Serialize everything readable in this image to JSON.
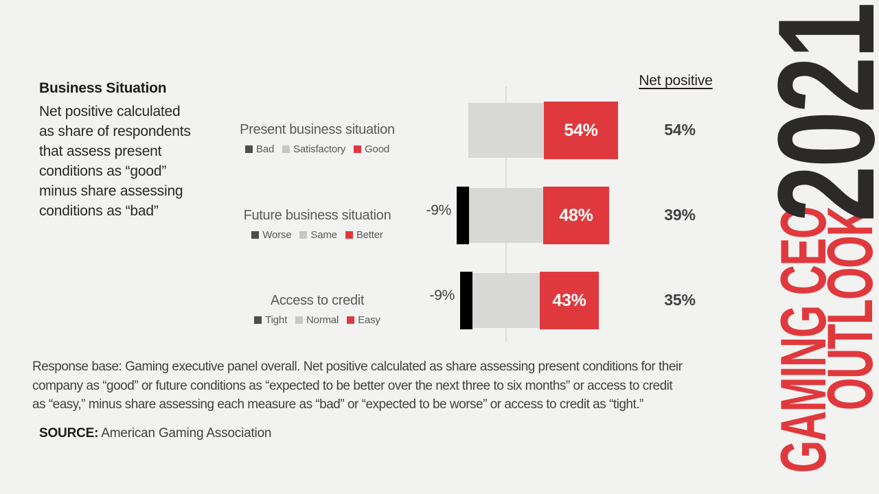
{
  "page": {
    "background": "#f2f2f1"
  },
  "left_panel": {
    "title": "Business Situation",
    "description_lines": [
      "Net positive calculated",
      "as share of respondents",
      "that assess present",
      "conditions as “good”",
      "minus share assessing",
      "conditions as “bad”"
    ]
  },
  "chart_data": {
    "type": "bar",
    "subtype": "diverging-stacked-horizontal",
    "unit": "percent of respondents",
    "net_positive_header": "Net positive",
    "colors": {
      "negative": "#000000",
      "neutral": "#d8d8d7",
      "positive": "#e0393d"
    },
    "gridline": true,
    "rows": [
      {
        "label": "Present business situation",
        "legend": [
          {
            "name": "Bad",
            "color": "#4d4d4d"
          },
          {
            "name": "Satisfactory",
            "color": "#c7c7c6"
          },
          {
            "name": "Good",
            "color": "#e0393d"
          }
        ],
        "negative_pct": 0,
        "neutral_pct": 55,
        "positive_pct": 54,
        "negative_label": "",
        "positive_label": "54%",
        "net_positive": "54%"
      },
      {
        "label": "Future business situation",
        "legend": [
          {
            "name": "Worse",
            "color": "#4d4d4d"
          },
          {
            "name": "Same",
            "color": "#c7c7c6"
          },
          {
            "name": "Better",
            "color": "#e0393d"
          }
        ],
        "negative_pct": 9,
        "neutral_pct": 54,
        "positive_pct": 48,
        "negative_label": "-9%",
        "positive_label": "48%",
        "net_positive": "39%"
      },
      {
        "label": "Access to credit",
        "legend": [
          {
            "name": "Tight",
            "color": "#4d4d4d"
          },
          {
            "name": "Normal",
            "color": "#c7c7c6"
          },
          {
            "name": "Easy",
            "color": "#e0393d"
          }
        ],
        "negative_pct": 9,
        "neutral_pct": 49,
        "positive_pct": 43,
        "negative_label": "-9%",
        "positive_label": "43%",
        "net_positive": "35%"
      }
    ]
  },
  "footnote_lines": [
    "Response base: Gaming executive panel overall. Net positive calculated as share assessing present conditions for their",
    "company as “good” or future conditions as “expected to be better over the next three to six months” or access to credit",
    "as “easy,” minus share assessing each measure as “bad” or “expected to be worse” or access to credit as “tight.”"
  ],
  "source": {
    "label": "SOURCE:",
    "text": "American Gaming Association"
  },
  "sidebar": {
    "line1": "GAMING CEO",
    "line2": "OUTLOOK",
    "year": "2021",
    "red": "#e0393d",
    "dark": "#2b2a29"
  }
}
